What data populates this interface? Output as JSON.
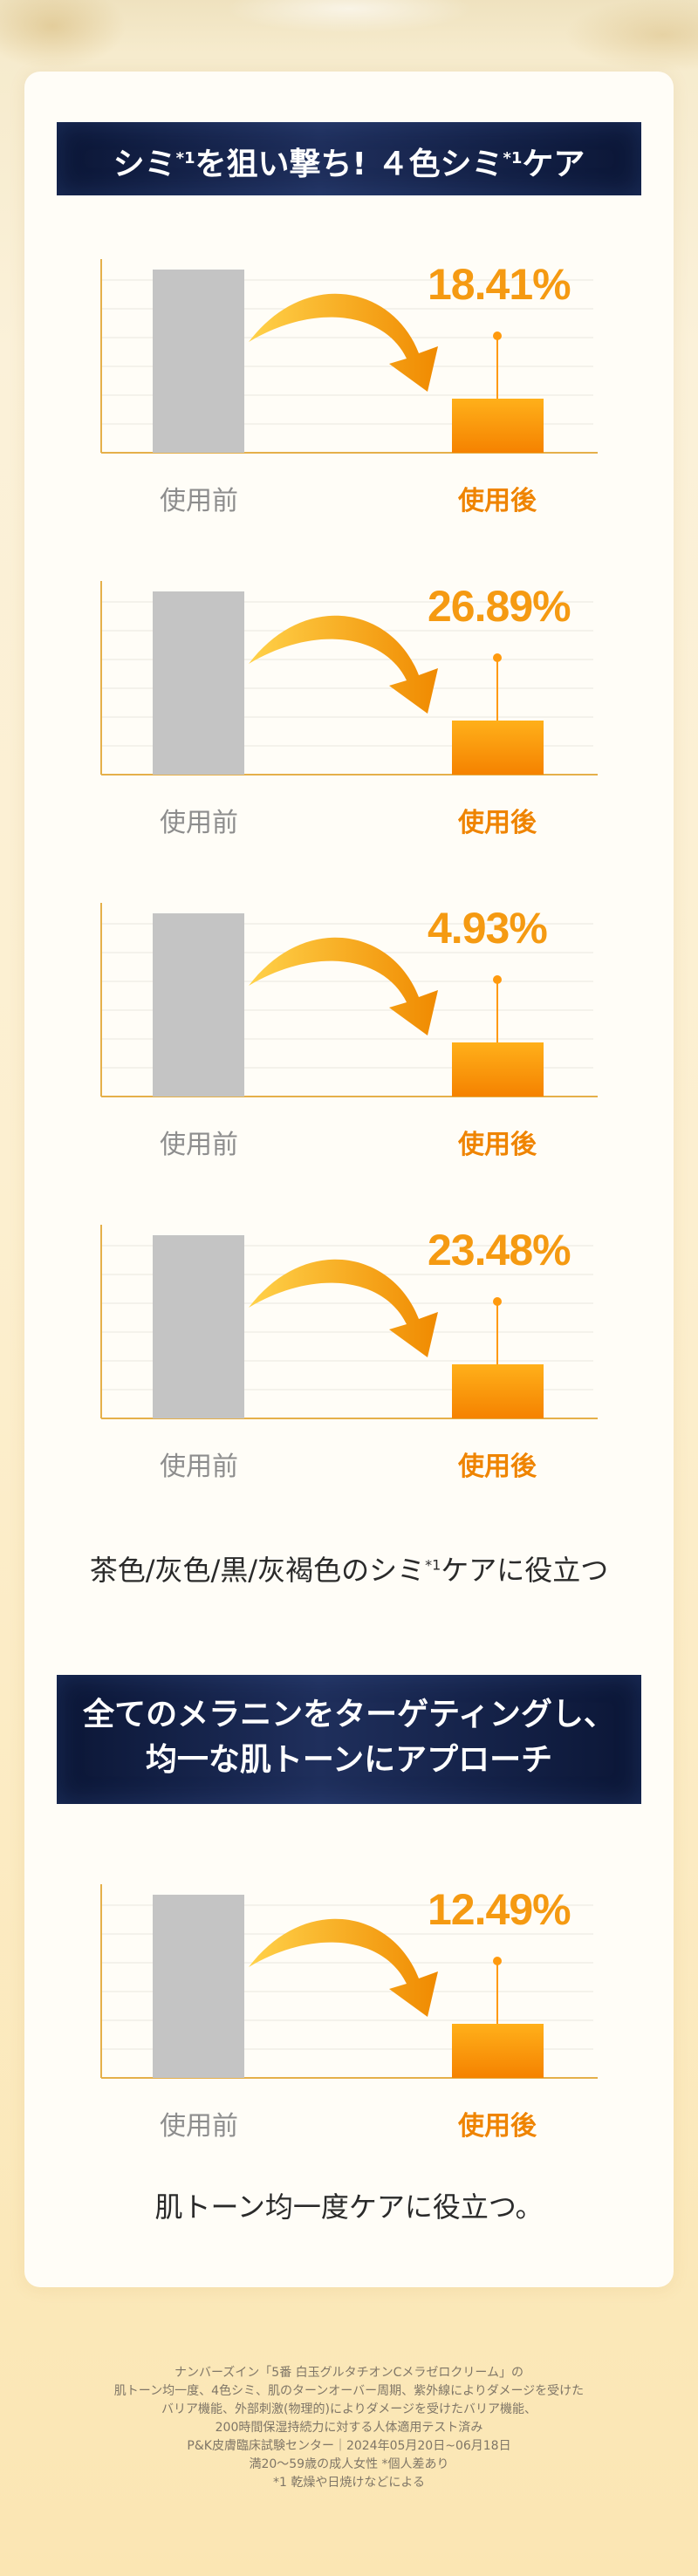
{
  "banner1": {
    "text_before": "シミ",
    "sup1": "*1",
    "text_middle": "を狙い撃ち! ４色シミ",
    "sup2": "*1",
    "text_after": "ケア"
  },
  "chart_data": [
    {
      "type": "bar",
      "categories": [
        "使用前",
        "使用後"
      ],
      "values": [
        100,
        18.41
      ],
      "value_label": "18.41%"
    },
    {
      "type": "bar",
      "categories": [
        "使用前",
        "使用後"
      ],
      "values": [
        100,
        26.89
      ],
      "value_label": "26.89%"
    },
    {
      "type": "bar",
      "categories": [
        "使用前",
        "使用後"
      ],
      "values": [
        100,
        4.93
      ],
      "value_label": "4.93%"
    },
    {
      "type": "bar",
      "categories": [
        "使用前",
        "使用後"
      ],
      "values": [
        100,
        23.48
      ],
      "value_label": "23.48%"
    },
    {
      "type": "bar",
      "categories": [
        "使用前",
        "使用後"
      ],
      "values": [
        100,
        12.49
      ],
      "value_label": "12.49%"
    }
  ],
  "caption1": {
    "text_before": "茶色/灰色/黒/灰褐色のシミ",
    "sup": "*1",
    "text_after": "ケアに役立つ"
  },
  "banner2": {
    "line1": "全てのメラニンをターゲティングし、",
    "line2": "均一な肌トーンにアプローチ"
  },
  "caption2": {
    "text": "肌トーン均一度ケアに役立つ。"
  },
  "colors": {
    "accent": "#f59a12",
    "bar_before": "#c4c4c4",
    "bar_after": "#ff9a0e",
    "banner": "#0b1636"
  },
  "footnote": [
    "ナンバーズイン「5番 白玉グルタチオンCメラゼロクリーム」の",
    "肌トーン均一度、4色シミ、肌のターンオーバー周期、紫外線によりダメージを受けた",
    "バリア機能、外部刺激(物理的)によりダメージを受けたバリア機能、",
    "200時間保湿持続力に対する人体適用テスト済み",
    "P&K皮膚臨床試験センター｜2024年05月20日~06月18日",
    "満20～59歳の成人女性 *個人差あり",
    "*1 乾燥や日焼けなどによる"
  ]
}
